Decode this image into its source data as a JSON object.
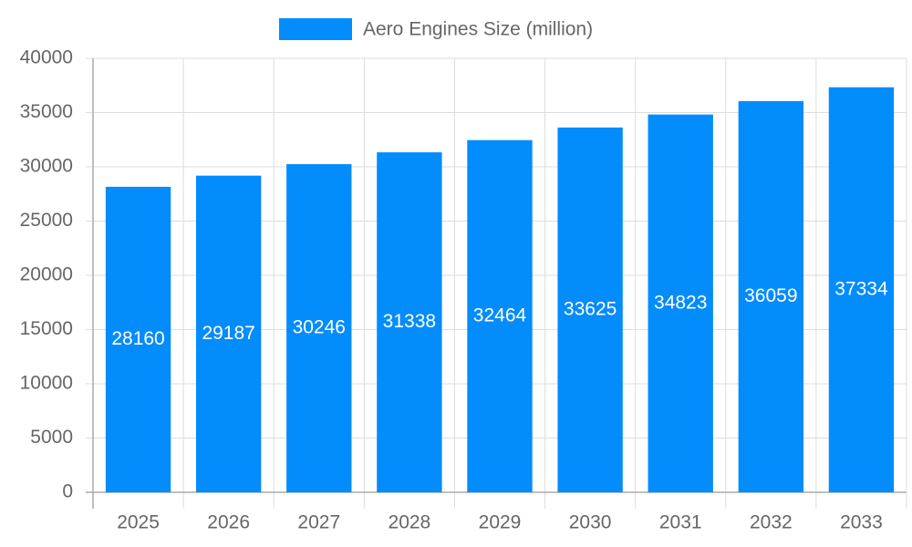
{
  "chart_data": {
    "type": "bar",
    "categories": [
      "2025",
      "2026",
      "2027",
      "2028",
      "2029",
      "2030",
      "2031",
      "2032",
      "2033"
    ],
    "series": [
      {
        "name": "Aero Engines Size (million)",
        "color": "#038cfc",
        "values": [
          28160,
          29187,
          30246,
          31338,
          32464,
          33625,
          34823,
          36059,
          37334
        ]
      }
    ],
    "ylim": [
      0,
      40000
    ],
    "yticks": [
      0,
      5000,
      10000,
      15000,
      20000,
      25000,
      30000,
      35000,
      40000
    ],
    "grid": true,
    "legend": "top"
  }
}
